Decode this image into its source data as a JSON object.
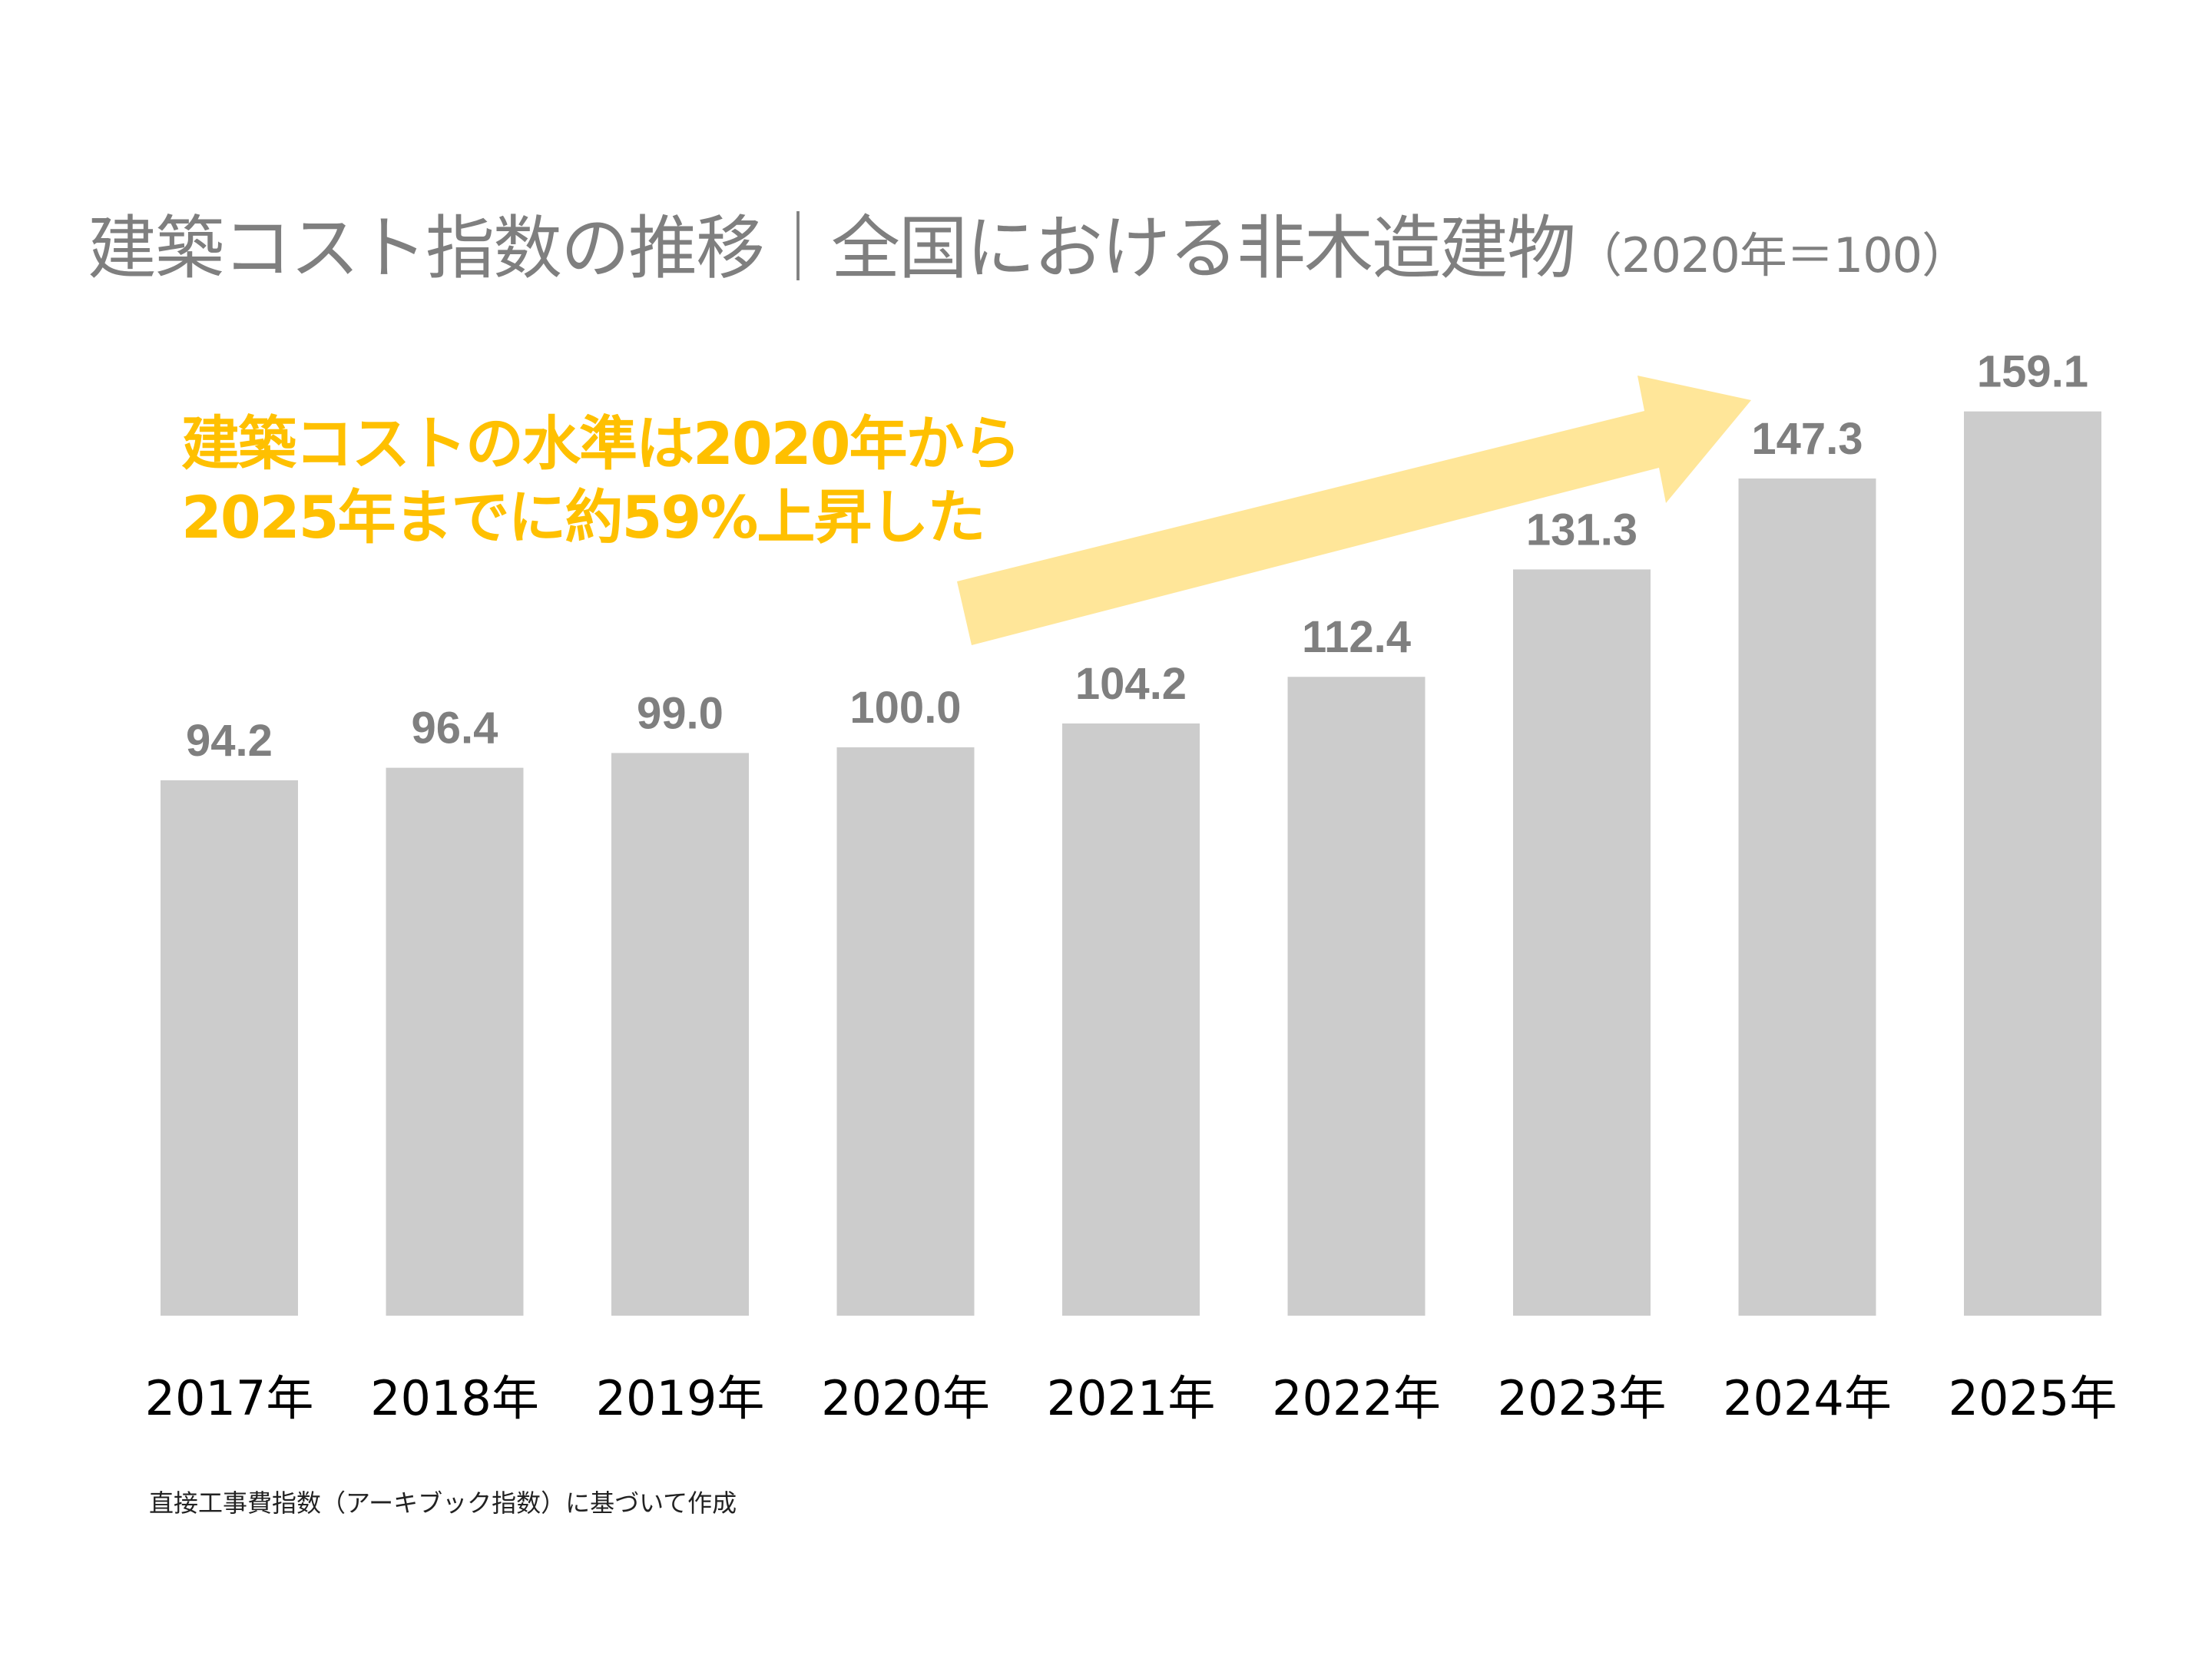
{
  "title": {
    "main": "建築コスト指数の推移｜全国における非木造建物",
    "sub": "（2020年＝100）"
  },
  "annotation": {
    "line1": "建築コストの水準は2020年から",
    "line2": "2025年までに約59%上昇した"
  },
  "footer": "直接工事費指数（アーキブック指数）に基づいて作成",
  "colors": {
    "bar": "#cccccc",
    "value_label": "#7f7f7f",
    "annotation": "#FFC000",
    "arrow": "#FFE699",
    "title": "#7f7f7f"
  },
  "chart_data": {
    "type": "bar",
    "categories": [
      "2017年",
      "2018年",
      "2019年",
      "2020年",
      "2021年",
      "2022年",
      "2023年",
      "2024年",
      "2025年"
    ],
    "values": [
      94.2,
      96.4,
      99.0,
      100.0,
      104.2,
      112.4,
      131.3,
      147.3,
      159.1
    ],
    "value_labels": [
      "94.2",
      "96.4",
      "99.0",
      "100.0",
      "104.2",
      "112.4",
      "131.3",
      "147.3",
      "159.1"
    ],
    "ylim": [
      0,
      160
    ],
    "grid": false,
    "legend": "none",
    "y_axis_visible": false
  }
}
